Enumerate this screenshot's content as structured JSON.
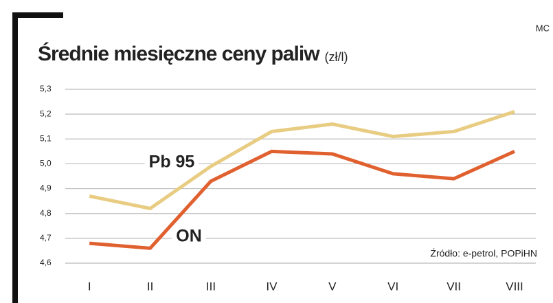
{
  "chart_data": {
    "type": "line",
    "title": "Średnie miesięczne ceny paliw",
    "subtitle": "(zł/l)",
    "corner_label": "MC",
    "source": "Źródło: e-petrol, POPiHN",
    "categories": [
      "I",
      "II",
      "III",
      "IV",
      "V",
      "VI",
      "VII",
      "VIII"
    ],
    "series": [
      {
        "name": "Pb 95",
        "color": "#e8cc82",
        "values": [
          4.87,
          4.82,
          4.99,
          5.13,
          5.16,
          5.11,
          5.13,
          5.21
        ]
      },
      {
        "name": "ON",
        "color": "#e0602f",
        "values": [
          4.68,
          4.66,
          4.93,
          5.05,
          5.04,
          4.96,
          4.94,
          5.05
        ]
      }
    ],
    "ylim": [
      4.6,
      5.3
    ],
    "yticks": [
      {
        "value": 4.6,
        "label": "4,6"
      },
      {
        "value": 4.7,
        "label": "4,7"
      },
      {
        "value": 4.8,
        "label": "4,8"
      },
      {
        "value": 4.9,
        "label": "4,9"
      },
      {
        "value": 5.0,
        "label": "5,0"
      },
      {
        "value": 5.1,
        "label": "5,1"
      },
      {
        "value": 5.2,
        "label": "5,2"
      },
      {
        "value": 5.3,
        "label": "5,3"
      }
    ],
    "grid": true
  }
}
